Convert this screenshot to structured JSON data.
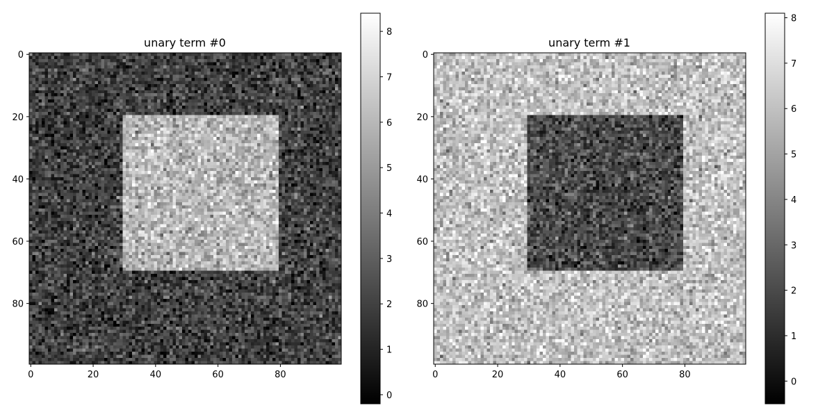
{
  "chart_data": [
    {
      "type": "heatmap",
      "title": "unary term #0",
      "colormap": "gray",
      "rows": 100,
      "cols": 100,
      "xlim": [
        -0.5,
        99.5
      ],
      "ylim": [
        99.5,
        -0.5
      ],
      "xticks": [
        0,
        20,
        40,
        60,
        80
      ],
      "yticks": [
        0,
        20,
        40,
        60,
        80
      ],
      "background_mean": 2.0,
      "square": {
        "row_range": [
          20,
          69
        ],
        "col_range": [
          30,
          79
        ],
        "mean": 6.0
      },
      "noise_sd": 1.0,
      "colorbar": {
        "range": [
          -0.2,
          8.4
        ],
        "ticks": [
          0,
          1,
          2,
          3,
          4,
          5,
          6,
          7,
          8
        ]
      }
    },
    {
      "type": "heatmap",
      "title": "unary term #1",
      "colormap": "gray",
      "rows": 100,
      "cols": 100,
      "xlim": [
        -0.5,
        99.5
      ],
      "ylim": [
        99.5,
        -0.5
      ],
      "xticks": [
        0,
        20,
        40,
        60,
        80
      ],
      "yticks": [
        0,
        20,
        40,
        60,
        80
      ],
      "background_mean": 6.0,
      "square": {
        "row_range": [
          20,
          69
        ],
        "col_range": [
          30,
          79
        ],
        "mean": 2.0
      },
      "noise_sd": 1.0,
      "colorbar": {
        "range": [
          -0.5,
          8.1
        ],
        "ticks": [
          0,
          1,
          2,
          3,
          4,
          5,
          6,
          7,
          8
        ]
      }
    }
  ]
}
